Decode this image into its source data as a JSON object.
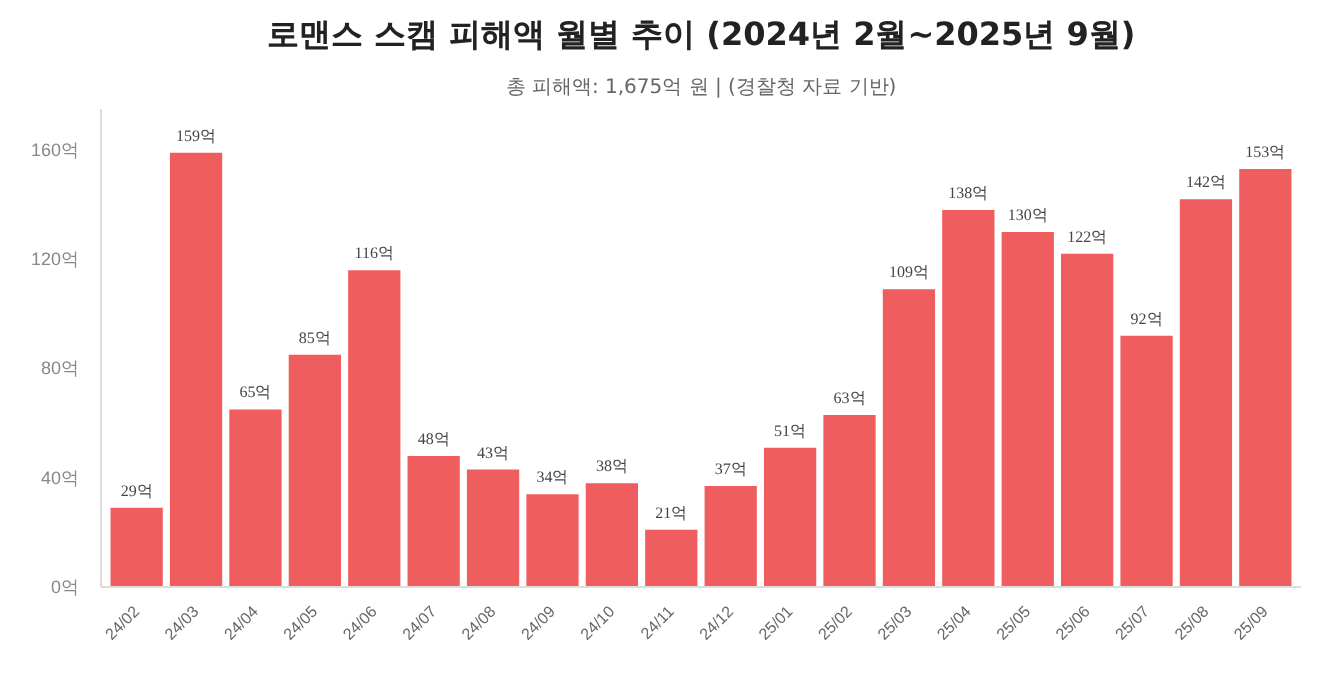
{
  "chart_data": {
    "type": "bar",
    "title": "로맨스 스캠 피해액 월별 추이 (2024년 2월~2025년 9월)",
    "subtitle": "총 피해액: 1,675억 원 | (경찰청 자료 기반)",
    "categories": [
      "24/02",
      "24/03",
      "24/04",
      "24/05",
      "24/06",
      "24/07",
      "24/08",
      "24/09",
      "24/10",
      "24/11",
      "24/12",
      "25/01",
      "25/02",
      "25/03",
      "25/04",
      "25/05",
      "25/06",
      "25/07",
      "25/08",
      "25/09"
    ],
    "values": [
      29,
      159,
      65,
      85,
      116,
      48,
      43,
      34,
      38,
      21,
      37,
      51,
      63,
      109,
      138,
      130,
      122,
      92,
      142,
      153
    ],
    "value_labels": [
      "29억",
      "159억",
      "65억",
      "85억",
      "116억",
      "48억",
      "43억",
      "34억",
      "38억",
      "21억",
      "37억",
      "51억",
      "63억",
      "109억",
      "138억",
      "130억",
      "122억",
      "92억",
      "142억",
      "153억"
    ],
    "color": "#f05d5e",
    "ylim": [
      0,
      175
    ],
    "yticks": [
      {
        "value": 0,
        "label": "0억"
      },
      {
        "value": 40,
        "label": "40억"
      },
      {
        "value": 80,
        "label": "80억"
      },
      {
        "value": 120,
        "label": "120억"
      },
      {
        "value": 160,
        "label": "160억"
      }
    ],
    "grid": false
  }
}
